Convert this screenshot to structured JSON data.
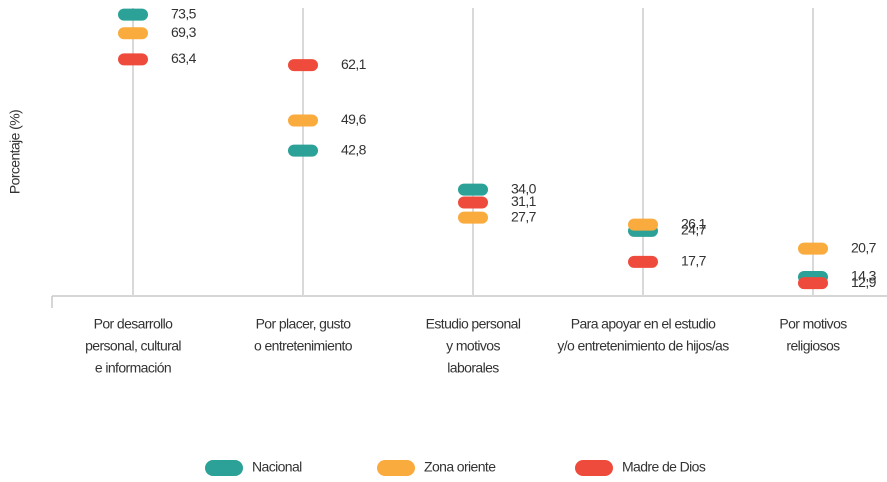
{
  "chart_data": {
    "type": "dot",
    "y_label": "Porcentaje (%)",
    "categories": [
      [
        "Por desarrollo",
        "personal, cultural",
        "e información"
      ],
      [
        "Por placer, gusto",
        "o entretenimiento"
      ],
      [
        "Estudio personal",
        "y motivos",
        "laborales"
      ],
      [
        "Para apoyar en el estudio",
        "y/o entretenimiento de hijos/as"
      ],
      [
        "Por motivos",
        "religiosos"
      ]
    ],
    "series": [
      {
        "name": "Nacional",
        "color": "#2ba197",
        "values": [
          73.5,
          42.8,
          34.0,
          24.7,
          14.3
        ],
        "value_labels": [
          "73,5",
          "42,8",
          "34,0",
          "24,7",
          "14,3"
        ]
      },
      {
        "name": "Zona oriente",
        "color": "#f9ab3d",
        "values": [
          69.3,
          49.6,
          27.7,
          26.1,
          20.7
        ],
        "value_labels": [
          "69,3",
          "49,6",
          "27,7",
          "26,1",
          "20,7"
        ]
      },
      {
        "name": "Madre de Dios",
        "color": "#ef4b3c",
        "values": [
          63.4,
          62.1,
          31.1,
          17.7,
          12.9
        ],
        "value_labels": [
          "63,4",
          "62,1",
          "31,1",
          "17,7",
          "12,9"
        ]
      }
    ],
    "ylim": [
      10,
      75
    ],
    "legend": "bottom"
  }
}
